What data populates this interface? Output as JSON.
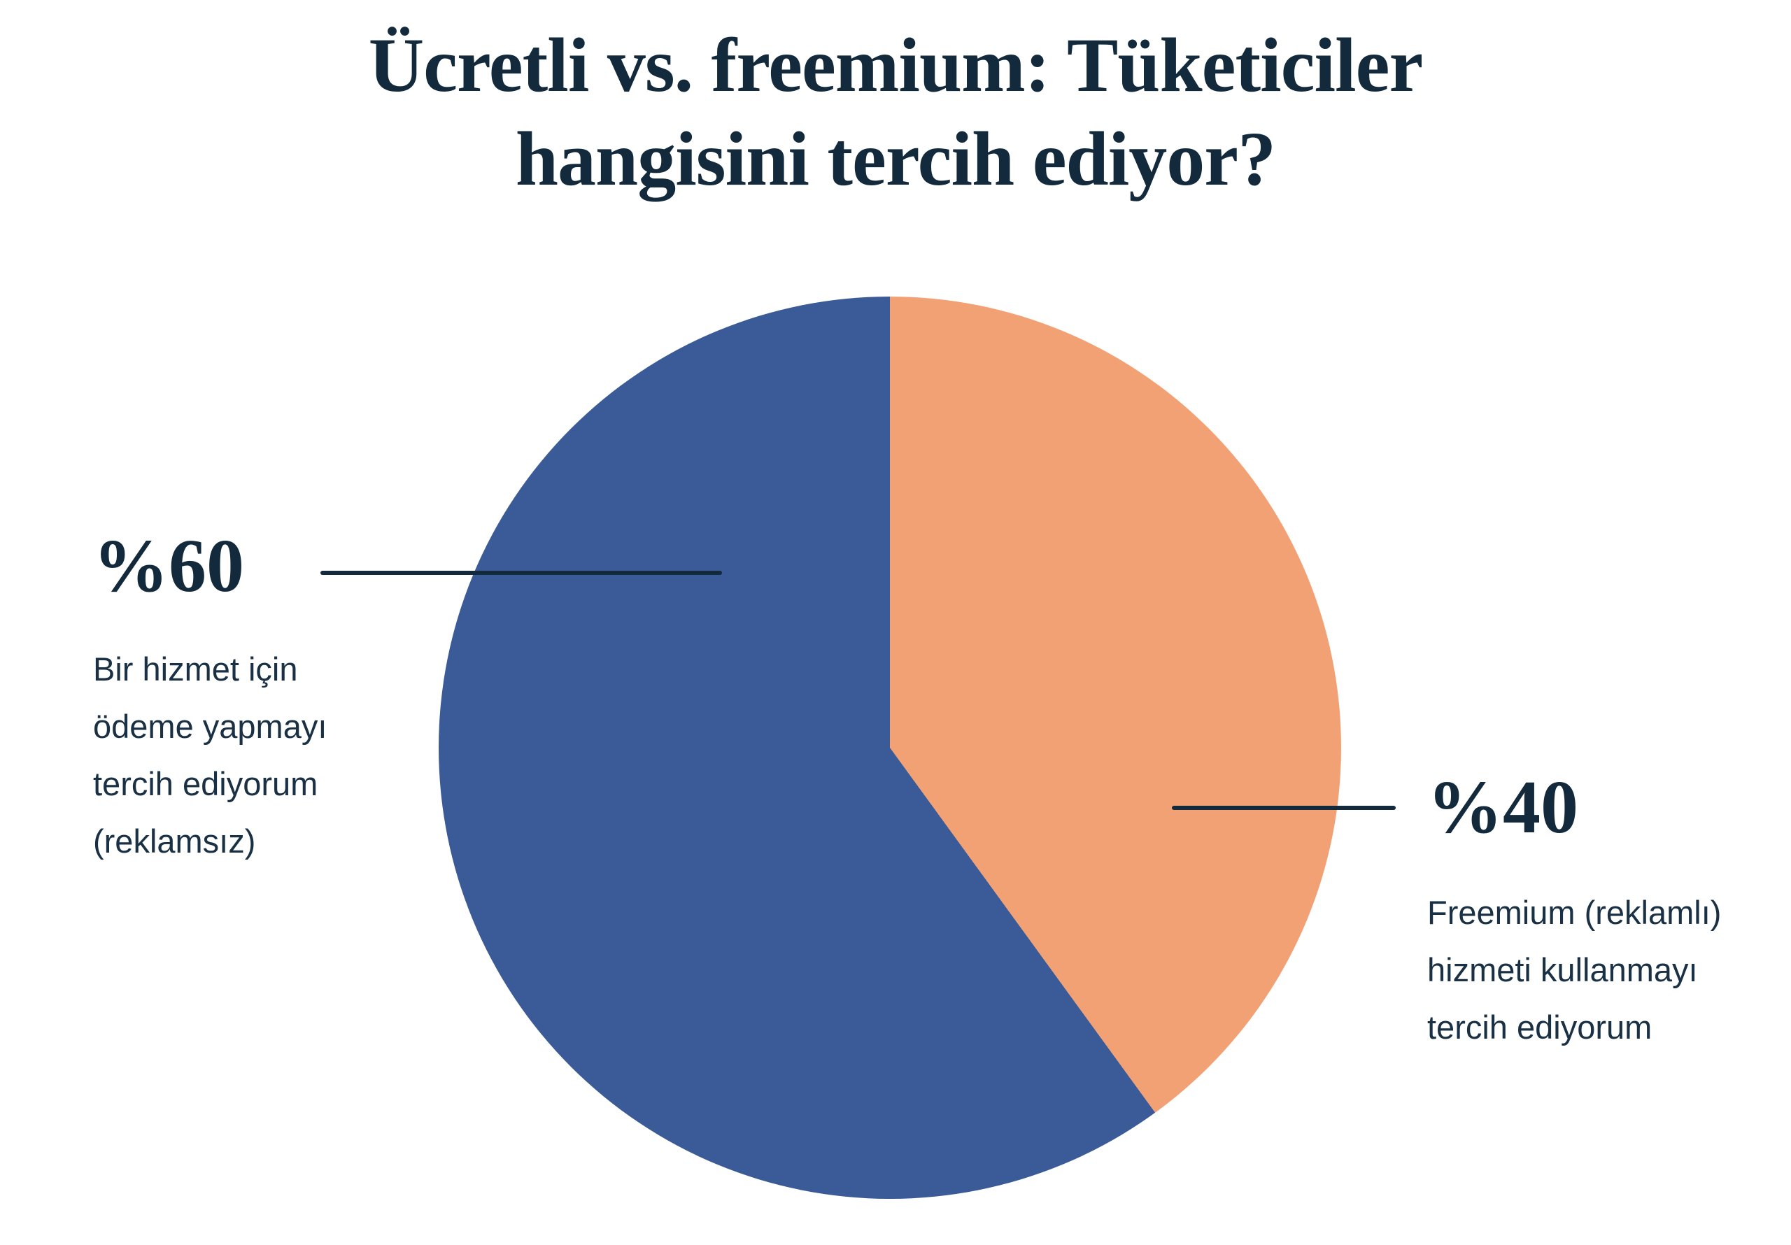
{
  "page": {
    "background": "#FFFFFF"
  },
  "title": {
    "line1": "Ücretli vs. freemium: Tüketiciler",
    "line2": "hangisini tercih ediyor?"
  },
  "colors": {
    "navy_text": "#13293C",
    "paid_blue": "#3A5B97",
    "freemium_orange": "#F2A175",
    "background": "#FFFFFF"
  },
  "chart_data": {
    "type": "pie",
    "title": "Ücretli vs. freemium: Tüketiciler hangisini tercih ediyor?",
    "start_angle_deg": 144,
    "direction": "clockwise",
    "legend_position": "callout-labels",
    "categories": [
      "Bir hizmet için ödeme yapmayı tercih ediyorum (reklamsız)",
      "Freemium (reklamlı) hizmeti kullanmayı tercih ediyorum"
    ],
    "values": [
      60,
      40
    ],
    "slices": [
      {
        "label": "Bir hizmet için ödeme yapmayı tercih ediyorum (reklamsız)",
        "value": 60,
        "value_label": "%60",
        "color": "#3A5B97"
      },
      {
        "label": "Freemium (reklamlı) hizmeti kullanmayı tercih ediyorum",
        "value": 40,
        "value_label": "%40",
        "color": "#F2A175"
      }
    ]
  },
  "callouts": {
    "left": {
      "pct": "%60",
      "lines": [
        "Bir hizmet için",
        "ödeme yapmayı",
        "tercih ediyorum",
        "(reklamsız)"
      ]
    },
    "right": {
      "pct": "%40",
      "lines": [
        "Freemium (reklamlı)",
        "hizmeti kullanmayı",
        "tercih ediyorum"
      ]
    }
  }
}
